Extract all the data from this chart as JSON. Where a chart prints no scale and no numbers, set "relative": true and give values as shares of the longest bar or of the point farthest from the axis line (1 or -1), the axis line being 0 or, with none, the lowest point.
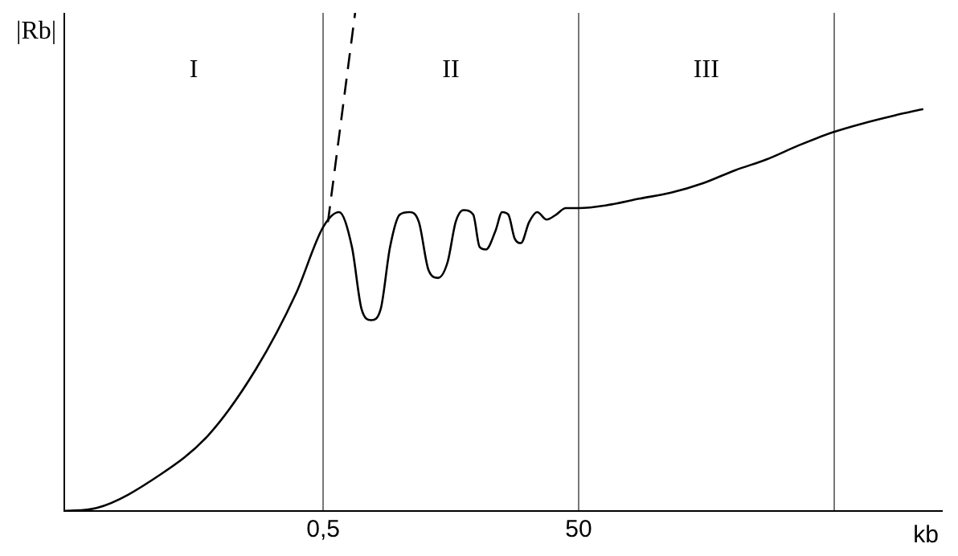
{
  "chart_data": {
    "type": "line",
    "relative": true,
    "log": "x",
    "xlabel": "kb",
    "ylabel": "|Rb|",
    "xlim": [
      0.0047,
      35000
    ],
    "xticks": [
      {
        "value": 0.5,
        "label": "0,5"
      },
      50,
      {
        "value": 5000,
        "label": null
      }
    ],
    "grid": "x",
    "legend": false,
    "marker": "none",
    "annotations": [
      "I",
      "II",
      "III"
    ],
    "series": [
      {
        "color": "#000000",
        "line_style": "solid",
        "x": [
          0.0047,
          0.0084,
          0.0265,
          0.063,
          0.149,
          0.307,
          0.5,
          0.667,
          0.84,
          1.0,
          1.19,
          1.41,
          1.67,
          1.99,
          2.37,
          2.81,
          3.34,
          3.97,
          4.72,
          5.45,
          6.29,
          7.48,
          8.4,
          9.42,
          11.2,
          12.6,
          14.1,
          15.8,
          17.7,
          20.5,
          23.7,
          28.1,
          33.4,
          39.7,
          50,
          84,
          149,
          265,
          472,
          840,
          1490,
          2650,
          4860,
          8400,
          14900,
          25000
        ],
        "values": [
          0,
          0.006,
          0.073,
          0.152,
          0.285,
          0.437,
          0.57,
          0.6,
          0.53,
          0.405,
          0.383,
          0.405,
          0.53,
          0.595,
          0.6,
          0.58,
          0.484,
          0.468,
          0.5,
          0.58,
          0.604,
          0.595,
          0.53,
          0.525,
          0.563,
          0.6,
          0.595,
          0.547,
          0.538,
          0.58,
          0.6,
          0.585,
          0.595,
          0.608,
          0.608,
          0.614,
          0.627,
          0.639,
          0.658,
          0.684,
          0.706,
          0.734,
          0.76,
          0.778,
          0.794,
          0.807
        ]
      },
      {
        "color": "#000000",
        "line_style": "dashed",
        "x": [
          0.545,
          0.667,
          0.89
        ],
        "values": [
          0.58,
          0.753,
          1
        ]
      }
    ]
  }
}
